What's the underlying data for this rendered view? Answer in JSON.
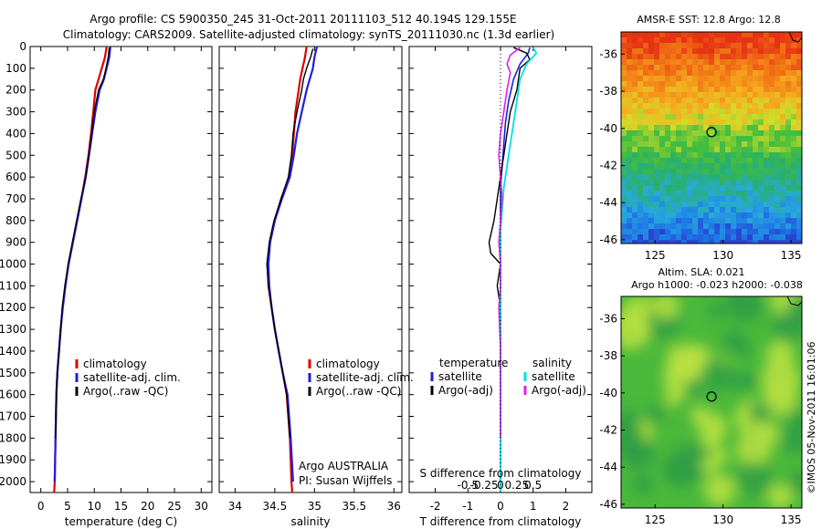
{
  "header": {
    "line1": "Argo profile: CS 5900350_245 31-Oct-2011 20111103_512 40.194S 129.155E",
    "line2": "Climatology: CARS2009. Satellite-adjusted climatology: synTS_20111030.nc (1.3d earlier)"
  },
  "side_stamp": "©IMOS 05-Nov-2011 16:01:06",
  "chart_data": [
    {
      "type": "line",
      "id": "temperature",
      "xlabel": "temperature (deg C)",
      "ylabel": "",
      "xlim": [
        -2,
        32
      ],
      "ylim": [
        2050,
        0
      ],
      "xticks": [
        0,
        5,
        10,
        15,
        20,
        25,
        30
      ],
      "yticks": [
        0,
        100,
        200,
        300,
        400,
        500,
        600,
        700,
        800,
        900,
        1000,
        1100,
        1200,
        1300,
        1400,
        1500,
        1600,
        1700,
        1800,
        1900,
        2000
      ],
      "legend": [
        "climatology",
        "satellite-adj. clim.",
        "Argo(..raw -QC)"
      ],
      "colors": {
        "climatology": "#dd0000",
        "satellite": "#1f1fe0",
        "argo": "#000000"
      },
      "series": [
        {
          "name": "climatology",
          "color": "#dd0000",
          "width": 2.2,
          "x": [
            12.3,
            12.0,
            11.4,
            10.8,
            10.2,
            9.8,
            9.4,
            8.9,
            8.3,
            7.6,
            6.8,
            6.0,
            5.2,
            4.6,
            4.1,
            3.7,
            3.4,
            3.1,
            2.9,
            2.75,
            2.6,
            2.5
          ],
          "y": [
            0,
            50,
            100,
            150,
            200,
            300,
            400,
            500,
            600,
            700,
            800,
            900,
            1000,
            1100,
            1200,
            1300,
            1400,
            1500,
            1600,
            1800,
            2000,
            2050
          ]
        },
        {
          "name": "satellite-adj. clim.",
          "color": "#1f1fe0",
          "width": 2.2,
          "x": [
            13.0,
            12.8,
            12.3,
            11.8,
            11.0,
            10.2,
            9.6,
            9.0,
            8.4,
            7.6,
            6.8,
            6.0,
            5.2,
            4.6,
            4.1,
            3.7,
            3.4,
            3.1,
            2.9,
            2.75,
            2.6
          ],
          "y": [
            0,
            50,
            100,
            150,
            200,
            300,
            400,
            500,
            600,
            700,
            800,
            900,
            1000,
            1100,
            1200,
            1300,
            1400,
            1500,
            1600,
            1800,
            2000
          ]
        },
        {
          "name": "Argo(..raw -QC)",
          "color": "#000000",
          "width": 1.4,
          "x": [
            12.8,
            12.6,
            12.2,
            11.7,
            10.8,
            10.0,
            9.5,
            9.0,
            8.4,
            7.5,
            6.7,
            5.9,
            5.1,
            4.5,
            4.0,
            3.7,
            3.4,
            3.1,
            2.9,
            2.75
          ],
          "y": [
            5,
            50,
            100,
            150,
            200,
            300,
            400,
            500,
            600,
            700,
            800,
            900,
            1000,
            1100,
            1200,
            1300,
            1400,
            1500,
            1600,
            1800
          ]
        }
      ]
    },
    {
      "type": "line",
      "id": "salinity",
      "xlabel": "salinity",
      "ylabel": "",
      "xlim": [
        33.8,
        36.1
      ],
      "ylim": [
        2050,
        0
      ],
      "xticks": [
        34,
        34.5,
        35,
        35.5,
        36
      ],
      "legend": [
        "climatology",
        "satellite-adj. clim.",
        "Argo(..raw -QC)"
      ],
      "series": [
        {
          "name": "climatology",
          "color": "#dd0000",
          "width": 2.2,
          "x": [
            34.9,
            34.88,
            34.85,
            34.82,
            34.8,
            34.76,
            34.74,
            34.72,
            34.68,
            34.58,
            34.5,
            34.44,
            34.41,
            34.42,
            34.46,
            34.5,
            34.55,
            34.6,
            34.65,
            34.69,
            34.71,
            34.72
          ],
          "y": [
            0,
            50,
            100,
            150,
            200,
            300,
            400,
            500,
            600,
            700,
            800,
            900,
            1000,
            1100,
            1200,
            1300,
            1400,
            1500,
            1600,
            1800,
            2000,
            2050
          ]
        },
        {
          "name": "satellite-adj. clim.",
          "color": "#1f1fe0",
          "width": 2.2,
          "x": [
            35.03,
            35.0,
            34.98,
            34.94,
            34.9,
            34.84,
            34.78,
            34.74,
            34.69,
            34.59,
            34.5,
            34.44,
            34.42,
            34.43,
            34.46,
            34.5,
            34.55,
            34.6,
            34.66,
            34.7,
            34.73
          ],
          "y": [
            0,
            50,
            100,
            150,
            200,
            300,
            400,
            500,
            600,
            700,
            800,
            900,
            1000,
            1100,
            1200,
            1300,
            1400,
            1500,
            1600,
            1800,
            2000
          ]
        },
        {
          "name": "Argo(..raw -QC)",
          "color": "#000000",
          "width": 1.4,
          "x": [
            34.98,
            34.95,
            34.9,
            34.86,
            34.84,
            34.78,
            34.73,
            34.71,
            34.67,
            34.58,
            34.49,
            34.43,
            34.4,
            34.42,
            34.46,
            34.5,
            34.55,
            34.6,
            34.65,
            34.69
          ],
          "y": [
            10,
            50,
            100,
            150,
            200,
            300,
            400,
            500,
            600,
            700,
            800,
            900,
            1000,
            1100,
            1200,
            1300,
            1400,
            1500,
            1600,
            1800
          ]
        }
      ],
      "note1": "Argo AUSTRALIA",
      "note2": "PI: Susan Wijffels"
    },
    {
      "type": "line",
      "id": "difference",
      "xlabel": "T difference from climatology",
      "xlabel2": "S difference from climatology",
      "xlim": [
        -2.8,
        2.8
      ],
      "ylim": [
        2050,
        0
      ],
      "xticks_T": [
        -2,
        -1,
        0,
        1,
        2
      ],
      "xticks_S": [
        "-0.5",
        "-0.25",
        "0",
        "0.25",
        "0.5"
      ],
      "legend_T": [
        "temperature",
        "satellite",
        "Argo(-adj)"
      ],
      "legend_S": [
        "salinity",
        "satellite",
        "Argo(-adj)"
      ],
      "series": [
        {
          "name": "temperature satellite",
          "color": "#1f1fe0",
          "width": 1.6,
          "x": [
            0.9,
            0.85,
            0.6,
            0.4,
            0.25,
            0.15,
            0.1,
            0.05,
            0.0,
            0.0,
            0.0,
            0.0,
            0.0,
            0.0,
            0.0,
            0.0,
            0.0,
            0.0,
            0.0,
            0.0
          ],
          "y": [
            5,
            30,
            80,
            150,
            250,
            350,
            450,
            550,
            650,
            750,
            850,
            950,
            1050,
            1150,
            1250,
            1400,
            1600,
            1800,
            1950,
            2050
          ]
        },
        {
          "name": "temperature Argo(-adj)",
          "color": "#000000",
          "width": 1.4,
          "x": [
            0.4,
            0.8,
            0.9,
            0.6,
            0.5,
            0.3,
            0.2,
            0.1,
            0.0,
            -0.1,
            -0.2,
            -0.35,
            -0.3,
            0.0,
            -0.1,
            0.0,
            0.0,
            0.0,
            0.0
          ],
          "y": [
            5,
            30,
            60,
            100,
            200,
            300,
            400,
            500,
            600,
            700,
            800,
            900,
            950,
            1000,
            1100,
            1200,
            1400,
            1600,
            1800
          ]
        },
        {
          "name": "salinity satellite",
          "color": "#00e0e8",
          "width": 1.8,
          "x": [
            1.0,
            1.1,
            0.8,
            0.6,
            0.5,
            0.4,
            0.3,
            0.2,
            0.1,
            0.05,
            0.0,
            0.0,
            0.0,
            0.0,
            0.0,
            0.0,
            0.0,
            0.0,
            0.0,
            0.0
          ],
          "y": [
            5,
            30,
            80,
            150,
            250,
            350,
            450,
            550,
            650,
            750,
            850,
            950,
            1050,
            1150,
            1250,
            1400,
            1600,
            1800,
            1950,
            2050
          ]
        },
        {
          "name": "salinity Argo(-adj)",
          "color": "#e020e0",
          "width": 1.6,
          "x": [
            0.6,
            0.3,
            0.2,
            0.3,
            0.2,
            0.1,
            0.0,
            -0.05,
            0.0,
            0.05,
            0.0,
            -0.05,
            0.0,
            0.0,
            -0.05,
            0.0,
            0.0,
            0.0
          ],
          "y": [
            5,
            40,
            80,
            120,
            200,
            300,
            400,
            500,
            600,
            700,
            800,
            900,
            1000,
            1100,
            1200,
            1400,
            1600,
            1800
          ]
        }
      ]
    },
    {
      "type": "heatmap",
      "id": "sst-map",
      "title": "AMSR-E SST: 12.8 Argo: 12.8",
      "xlim": [
        122.5,
        135.8
      ],
      "ylim": [
        -46.2,
        -34.8
      ],
      "xticks": [
        125,
        130,
        135
      ],
      "yticks": [
        -36,
        -38,
        -40,
        -42,
        -44,
        -46
      ],
      "marker": {
        "lon": 129.155,
        "lat": -40.194
      }
    },
    {
      "type": "heatmap",
      "id": "sla-map",
      "title": "Altim. SLA: 0.021",
      "subtitle": "Argo h1000: -0.023 h2000: -0.038",
      "xlim": [
        122.5,
        135.8
      ],
      "ylim": [
        -46.2,
        -34.8
      ],
      "xticks": [
        125,
        130,
        135
      ],
      "yticks": [
        -36,
        -38,
        -40,
        -42,
        -44,
        -46
      ],
      "marker": {
        "lon": 129.155,
        "lat": -40.194
      }
    }
  ]
}
